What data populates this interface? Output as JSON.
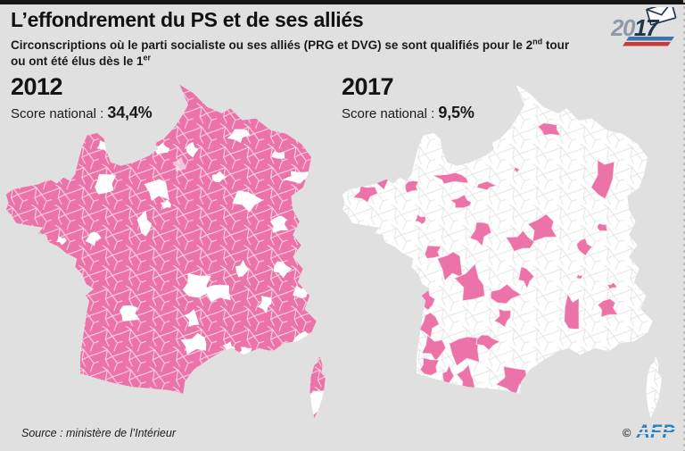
{
  "header": {
    "title": "L’effondrement du PS et de ses alliés",
    "subtitle_segments": [
      {
        "t": "Circonscriptions où le parti socialiste ou ses alliés (PRG et DVG) se sont qualifiés pour le 2"
      },
      {
        "t": "nd",
        "sup": true
      },
      {
        "t": " tour"
      },
      {
        "br": true
      },
      {
        "t": "ou ont été élus dès le 1"
      },
      {
        "t": "er",
        "sup": true
      }
    ],
    "logo": {
      "year_prefix": "20",
      "year_suffix": "17"
    }
  },
  "colors": {
    "background": "#e0e0e0",
    "top_bar": "#161616",
    "ps_pink": "#ec73a8",
    "map_white": "#ffffff",
    "boundary_on_pink": "#ffffff",
    "boundary_on_white": "#e4e4e4",
    "logo_gray": "#8d9aa7",
    "logo_navy": "#22364d",
    "flag_blue": "#3d74ad",
    "flag_red": "#c93a36",
    "afp_blue": "#2e7fc2"
  },
  "maps": [
    {
      "year": "2012",
      "score_label": "Score national :",
      "score_value": "34,4%",
      "base": "ps_pink",
      "patch": "map_white",
      "mesh": "boundary_on_pink",
      "patches": [
        [
          46.5,
          19.5,
          2.2,
          1.6
        ],
        [
          55.5,
          19.7,
          1.8,
          1.8
        ],
        [
          69.5,
          15.4,
          2.6,
          2.0
        ],
        [
          30,
          18.8,
          2.4,
          1.5
        ],
        [
          29.8,
          29.8,
          3.2,
          3.0
        ],
        [
          45.5,
          31.5,
          3.2,
          3.4
        ],
        [
          52,
          24.2,
          2.0,
          1.7,
          0.55
        ],
        [
          63.5,
          27.9,
          1.8,
          1.6
        ],
        [
          71.7,
          34.7,
          4.0,
          2.6
        ],
        [
          87,
          27.8,
          3.6,
          1.7
        ],
        [
          81.3,
          21.4,
          1.9,
          1.2
        ],
        [
          81.5,
          41.8,
          2.8,
          2.2
        ],
        [
          48,
          36,
          1.4,
          1.3
        ],
        [
          41.5,
          41.7,
          2.0,
          3.2
        ],
        [
          26.3,
          46,
          1.9,
          1.9
        ],
        [
          16.9,
          46.6,
          1.3,
          1.1
        ],
        [
          57,
          60,
          4.2,
          3.4
        ],
        [
          63.5,
          62,
          3.6,
          2.8
        ],
        [
          55.8,
          69.8,
          2.0,
          2.2
        ],
        [
          70.4,
          55.2,
          1.7,
          2.3
        ],
        [
          82.2,
          55,
          2.3,
          2.2
        ],
        [
          77.3,
          65.3,
          1.8,
          2.2
        ],
        [
          87.8,
          62,
          2.0,
          2.0
        ],
        [
          37,
          68.2,
          3.2,
          2.3
        ],
        [
          56.6,
          77.2,
          3.6,
          2.8
        ],
        [
          66.7,
          78.4,
          1.6,
          1.5
        ],
        [
          88.5,
          76.1,
          3.0,
          2.2
        ],
        [
          82.2,
          85.1,
          4.2,
          2.1
        ],
        [
          71.5,
          79.5,
          2.0,
          1.2
        ],
        [
          92.7,
          94.5,
          2.4,
          4.2
        ]
      ]
    },
    {
      "year": "2017",
      "score_label": "Score national :",
      "score_value": "9,5%",
      "base": "map_white",
      "patch": "ps_pink",
      "mesh": "boundary_on_white",
      "patches": [
        [
          51.2,
          0.8,
          1.0,
          0.8
        ],
        [
          61.9,
          13.7,
          3.0,
          2.0
        ],
        [
          41,
          17.7,
          2.5,
          1.2
        ],
        [
          35.7,
          20.7,
          0.9,
          0.8
        ],
        [
          12,
          27.5,
          3.4,
          3.0
        ],
        [
          7.4,
          32.7,
          2.8,
          2.4
        ],
        [
          2.9,
          25.7,
          1.0,
          0.9
        ],
        [
          21,
          30.6,
          2.2,
          1.7
        ],
        [
          33.2,
          28.2,
          4.5,
          1.7
        ],
        [
          35.9,
          35.3,
          3.2,
          1.6
        ],
        [
          43,
          30.4,
          2.3,
          1.3
        ],
        [
          52.1,
          25.7,
          0.8,
          0.7
        ],
        [
          77.9,
          28.4,
          3.0,
          5.6
        ],
        [
          77.6,
          42.8,
          1.5,
          1.3
        ],
        [
          60,
          43,
          4.4,
          3.3
        ],
        [
          53.4,
          47,
          3.5,
          2.9
        ],
        [
          72.1,
          48.5,
          2.2,
          2.1
        ],
        [
          41.5,
          44.3,
          2.5,
          3.4
        ],
        [
          23.7,
          40.4,
          1.5,
          1.3
        ],
        [
          27.2,
          50,
          2.6,
          1.9
        ],
        [
          32.8,
          54,
          3.3,
          4.4
        ],
        [
          38.8,
          59.7,
          4.4,
          4.5
        ],
        [
          48.5,
          62.7,
          3.9,
          2.7
        ],
        [
          54.8,
          57.3,
          2.0,
          2.7
        ],
        [
          48.2,
          69.4,
          2.2,
          2.4
        ],
        [
          68.6,
          68.3,
          2.2,
          5.8
        ],
        [
          79.2,
          66.6,
          3.0,
          2.4
        ],
        [
          80.5,
          60.1,
          1.3,
          0.9
        ],
        [
          25.5,
          64,
          2.2,
          2.9
        ],
        [
          26.2,
          71.5,
          2.4,
          3.3
        ],
        [
          27.6,
          78.5,
          2.9,
          3.4
        ],
        [
          26.3,
          84,
          2.9,
          2.4
        ],
        [
          37,
          79,
          4.3,
          4.6
        ],
        [
          37.4,
          87.8,
          2.5,
          3.5
        ],
        [
          31.8,
          86.8,
          1.6,
          2.5
        ],
        [
          43.3,
          76.6,
          2.9,
          2.1
        ],
        [
          50.9,
          87.8,
          4.2,
          3.6
        ],
        [
          70.8,
          57.4,
          0.8,
          0.7
        ]
      ]
    }
  ],
  "footer": {
    "source": "Source : ministère de l’Intérieur",
    "copyright": "©",
    "agency": "AFP"
  }
}
